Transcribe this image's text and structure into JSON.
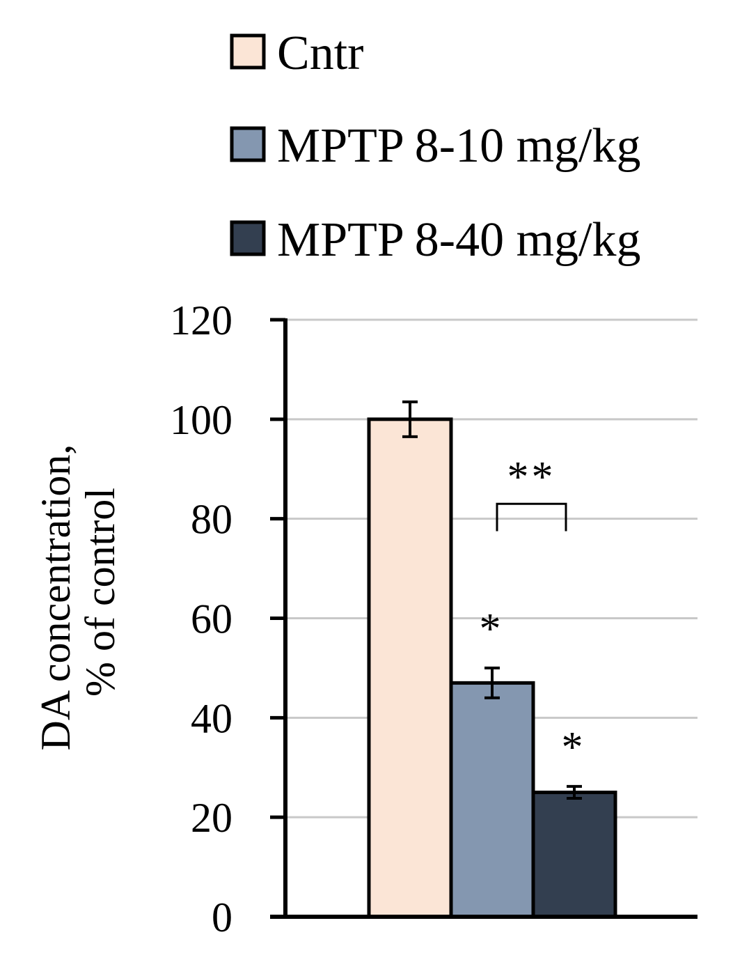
{
  "chart_data": {
    "type": "bar",
    "title": "",
    "xlabel": "",
    "ylabel_lines": [
      "DA concentration,",
      "% of control"
    ],
    "ylim": [
      0,
      120
    ],
    "yticks": [
      0,
      20,
      40,
      60,
      80,
      100,
      120
    ],
    "grid": true,
    "legend_position": "top",
    "series": [
      {
        "name": "Cntr",
        "value": 100,
        "error": 3.5,
        "color": "#fbe5d6",
        "significance": ""
      },
      {
        "name": "MPTP 8-10 mg/kg",
        "value": 47,
        "error": 3,
        "color": "#8497b0",
        "significance": "*"
      },
      {
        "name": "MPTP 8-40 mg/kg",
        "value": 25,
        "error": 1.2,
        "color": "#333f50",
        "significance": "*"
      }
    ],
    "comparison": {
      "between": [
        1,
        2
      ],
      "label": "**"
    }
  }
}
